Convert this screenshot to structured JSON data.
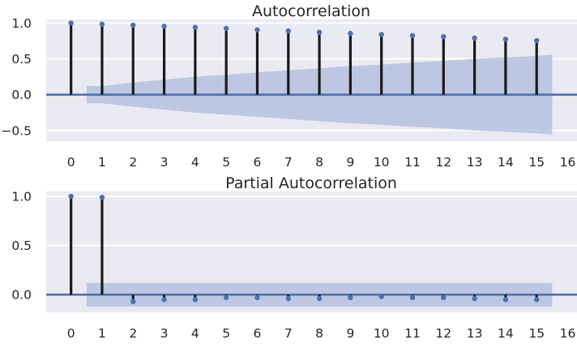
{
  "chart_data": [
    {
      "type": "stem",
      "title": "Autocorrelation",
      "xlabel": "",
      "ylabel": "",
      "x": [
        0,
        1,
        2,
        3,
        4,
        5,
        6,
        7,
        8,
        9,
        10,
        11,
        12,
        13,
        14,
        15
      ],
      "values": [
        1.0,
        0.985,
        0.97,
        0.955,
        0.94,
        0.925,
        0.905,
        0.89,
        0.87,
        0.855,
        0.84,
        0.825,
        0.81,
        0.79,
        0.775,
        0.755
      ],
      "confidence_band": {
        "x": [
          0.5,
          1,
          2,
          3,
          4,
          5,
          6,
          7,
          8,
          9,
          10,
          11,
          12,
          13,
          14,
          15,
          15.5
        ],
        "upper": [
          0.12,
          0.12,
          0.17,
          0.21,
          0.25,
          0.28,
          0.31,
          0.34,
          0.37,
          0.4,
          0.42,
          0.45,
          0.47,
          0.5,
          0.52,
          0.54,
          0.56
        ],
        "lower": [
          -0.12,
          -0.12,
          -0.17,
          -0.21,
          -0.25,
          -0.28,
          -0.31,
          -0.34,
          -0.37,
          -0.4,
          -0.42,
          -0.45,
          -0.47,
          -0.5,
          -0.52,
          -0.54,
          -0.56
        ]
      },
      "xlim": [
        -0.8,
        16.3
      ],
      "ylim": [
        -0.65,
        1.05
      ],
      "xticks": [
        "0",
        "1",
        "2",
        "3",
        "4",
        "5",
        "6",
        "7",
        "8",
        "9",
        "10",
        "11",
        "12",
        "13",
        "14",
        "15",
        "16"
      ],
      "yticks": [
        "−0.5",
        "0.0",
        "0.5",
        "1.0"
      ],
      "ytick_values": [
        -0.5,
        0.0,
        0.5,
        1.0
      ],
      "grid": true,
      "colors": {
        "stem": "#1a1a1a",
        "marker": "#4c72b0",
        "zero_line": "#4c72b0",
        "band": "#b3bedd",
        "background": "#eaeaf2",
        "grid": "#ffffff"
      }
    },
    {
      "type": "stem",
      "title": "Partial Autocorrelation",
      "xlabel": "",
      "ylabel": "",
      "x": [
        0,
        1,
        2,
        3,
        4,
        5,
        6,
        7,
        8,
        9,
        10,
        11,
        12,
        13,
        14,
        15
      ],
      "values": [
        1.0,
        0.99,
        -0.07,
        -0.05,
        -0.05,
        -0.03,
        -0.03,
        -0.04,
        -0.04,
        -0.03,
        -0.02,
        -0.03,
        -0.03,
        -0.04,
        -0.05,
        -0.05
      ],
      "confidence_band": {
        "x": [
          0.5,
          15.5
        ],
        "upper": [
          0.12,
          0.12
        ],
        "lower": [
          -0.12,
          -0.12
        ]
      },
      "xlim": [
        -0.8,
        16.3
      ],
      "ylim": [
        -0.18,
        1.05
      ],
      "xticks": [
        "0",
        "1",
        "2",
        "3",
        "4",
        "5",
        "6",
        "7",
        "8",
        "9",
        "10",
        "11",
        "12",
        "13",
        "14",
        "15",
        "16"
      ],
      "yticks": [
        "0.0",
        "0.5",
        "1.0"
      ],
      "ytick_values": [
        0.0,
        0.5,
        1.0
      ],
      "grid": true,
      "colors": {
        "stem": "#1a1a1a",
        "marker": "#4c72b0",
        "zero_line": "#4c72b0",
        "band": "#b3bedd",
        "background": "#eaeaf2",
        "grid": "#ffffff"
      }
    }
  ]
}
